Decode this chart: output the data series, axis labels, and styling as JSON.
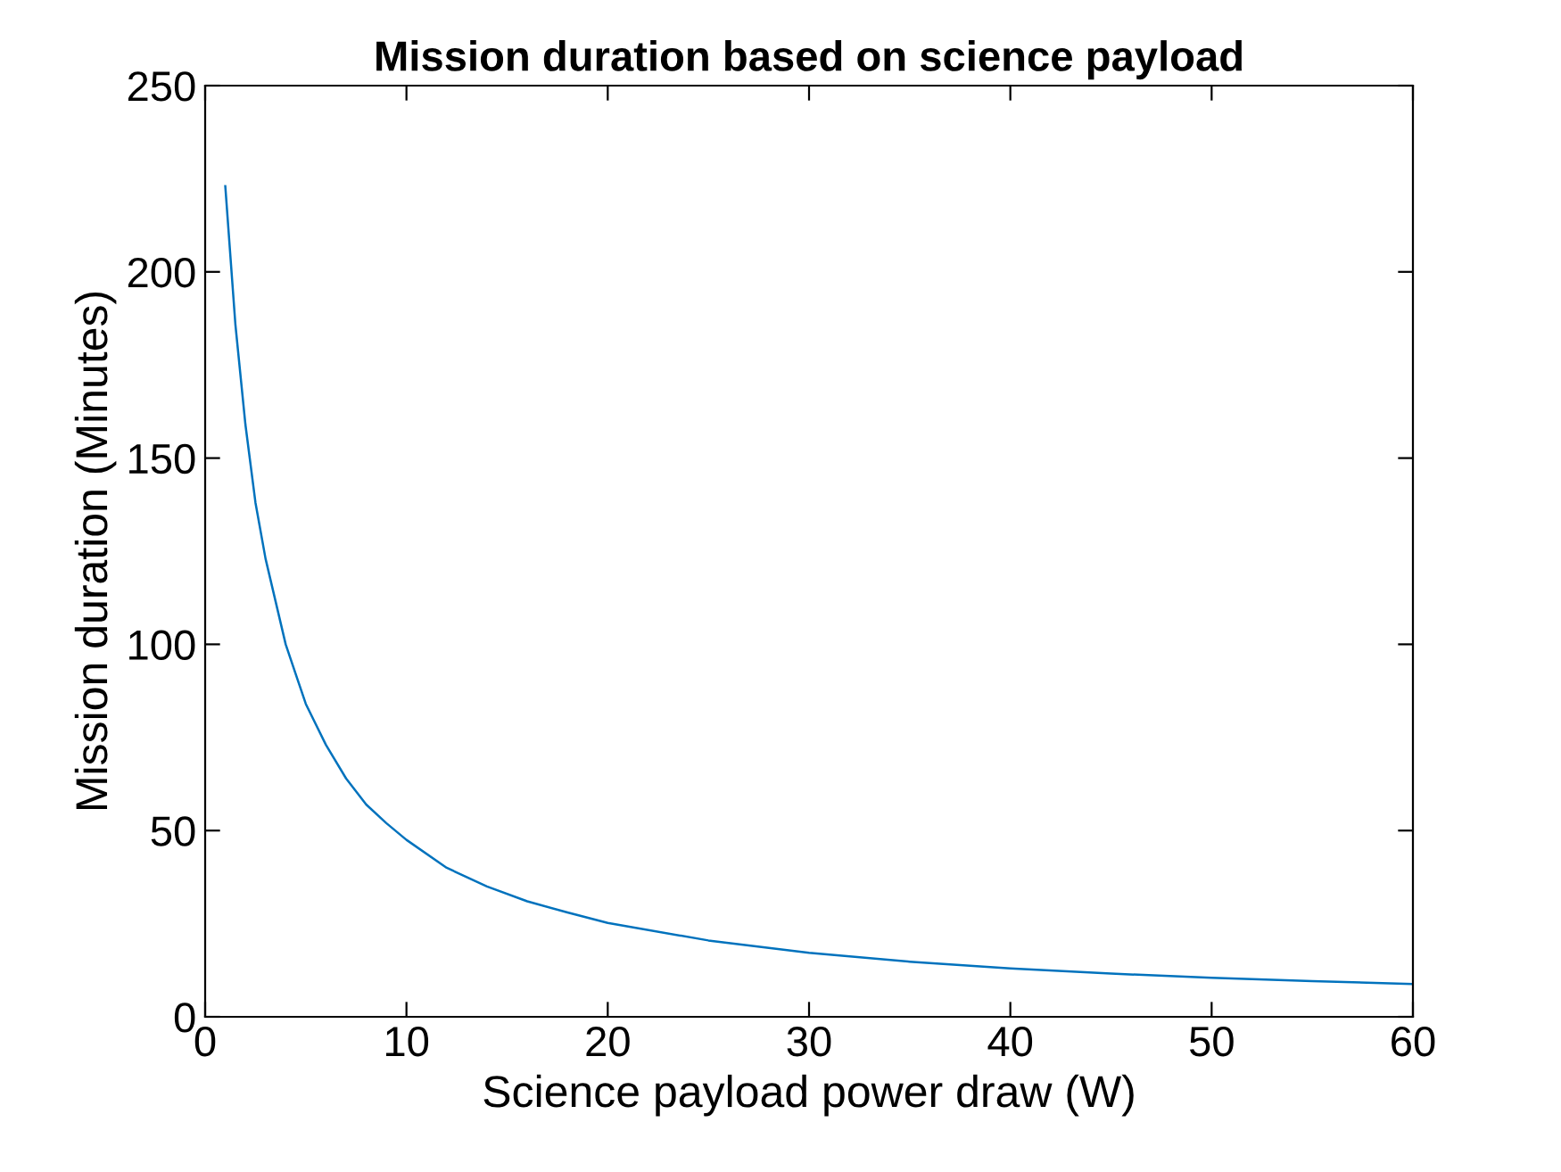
{
  "chart_data": {
    "type": "line",
    "title": "Mission duration based on science payload",
    "xlabel": "Science payload power draw (W)",
    "ylabel": "Mission duration (Minutes)",
    "x": [
      1,
      1.5,
      2,
      2.5,
      3,
      4,
      5,
      6,
      7,
      8,
      9,
      10,
      12,
      14,
      16,
      18,
      20,
      25,
      30,
      35,
      40,
      45,
      50,
      55,
      60
    ],
    "series": [
      {
        "color": "#0072bd",
        "values": [
          223,
          186,
          159,
          138,
          123,
          100,
          84,
          73,
          64,
          57,
          52,
          47.5,
          40,
          35,
          31,
          28,
          25.2,
          20.5,
          17.2,
          14.8,
          13,
          11.6,
          10.5,
          9.6,
          8.8
        ]
      }
    ],
    "xlim": [
      0,
      60
    ],
    "xticks": [
      0,
      10,
      20,
      30,
      40,
      50,
      60
    ],
    "ylim": [
      0,
      250
    ],
    "yticks": [
      0,
      50,
      100,
      150,
      200,
      250
    ],
    "grid": false,
    "legend": false,
    "marker": "none",
    "line_style": "solid"
  }
}
